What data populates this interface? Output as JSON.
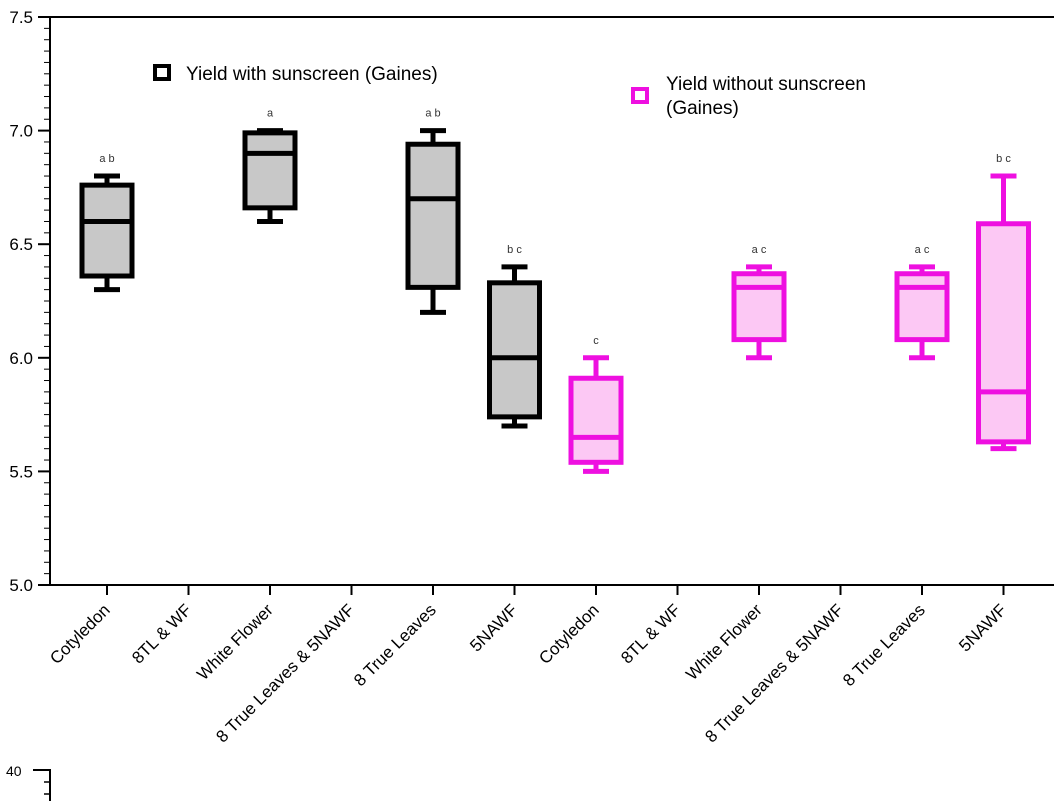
{
  "chart_data": {
    "type": "box",
    "ylim": [
      5.0,
      7.5
    ],
    "yticks": [
      "5.0",
      "5.5",
      "6.0",
      "6.5",
      "7.0",
      "7.5"
    ],
    "categories": [
      "Cotyledon",
      "8TL & WF",
      "White Flower",
      "8 True Leaves & 5NAWF",
      "8 True Leaves",
      "5NAWF",
      "Cotyledon",
      "8TL & WF",
      "White Flower",
      "8 True Leaves & 5NAWF",
      "8 True Leaves",
      "5NAWF"
    ],
    "legend": [
      "Yield with sunscreen (Gaines)",
      "Yield without sunscreen (Gaines)"
    ],
    "series": [
      {
        "name": "Yield with sunscreen (Gaines)",
        "color": "#000000",
        "fill": "#c8c8c8",
        "boxes": [
          {
            "category_index": 0,
            "min": 6.3,
            "q1": 6.36,
            "median": 6.6,
            "q3": 6.76,
            "max": 6.8,
            "label": "a b"
          },
          {
            "category_index": 2,
            "min": 6.6,
            "q1": 6.66,
            "median": 6.9,
            "q3": 6.99,
            "max": 7.0,
            "label": "a"
          },
          {
            "category_index": 4,
            "min": 6.2,
            "q1": 6.31,
            "median": 6.7,
            "q3": 6.94,
            "max": 7.0,
            "label": "a b"
          },
          {
            "category_index": 5,
            "min": 5.7,
            "q1": 5.74,
            "median": 6.0,
            "q3": 6.33,
            "max": 6.4,
            "label": "b c"
          }
        ]
      },
      {
        "name": "Yield without sunscreen (Gaines)",
        "color": "#ee10e0",
        "fill": "#fcc8f4",
        "boxes": [
          {
            "category_index": 6,
            "min": 5.5,
            "q1": 5.54,
            "median": 5.65,
            "q3": 5.91,
            "max": 6.0,
            "label": "c"
          },
          {
            "category_index": 8,
            "min": 6.0,
            "q1": 6.08,
            "median": 6.31,
            "q3": 6.37,
            "max": 6.4,
            "label": "a c"
          },
          {
            "category_index": 10,
            "min": 6.0,
            "q1": 6.08,
            "median": 6.31,
            "q3": 6.37,
            "max": 6.4,
            "label": "a c"
          },
          {
            "category_index": 11,
            "min": 5.6,
            "q1": 5.63,
            "median": 5.85,
            "q3": 6.59,
            "max": 6.8,
            "label": "b c"
          }
        ]
      }
    ]
  },
  "second_panel": {
    "ytick_label": "40"
  }
}
